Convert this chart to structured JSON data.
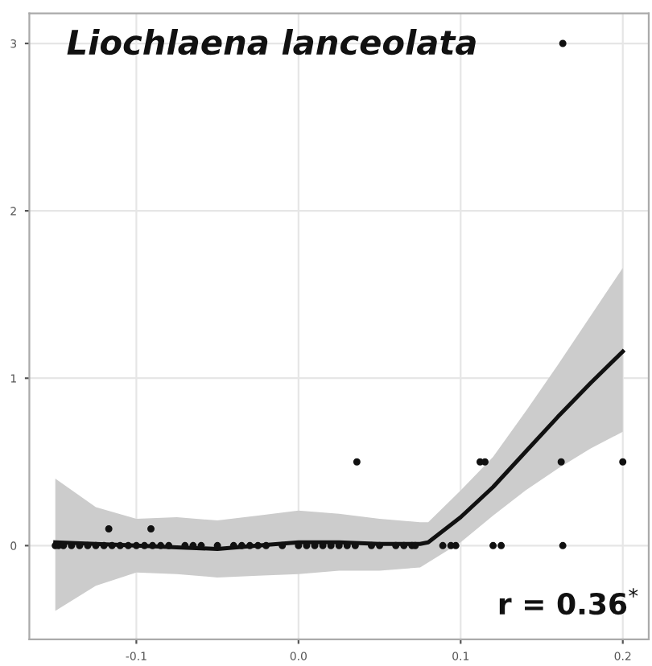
{
  "chart_data": {
    "type": "scatter",
    "title": "Liochlaena lanceolata",
    "annotations": [
      {
        "text": "r = 0.36$^{*}$"
      }
    ],
    "series": [
      {
        "color": "#111111",
        "marker": "circle",
        "x": [
          -0.15,
          -0.148,
          -0.145,
          -0.14,
          -0.135,
          -0.13,
          -0.125,
          -0.12,
          -0.115,
          -0.11,
          -0.105,
          -0.1,
          -0.095,
          -0.09,
          -0.085,
          -0.08,
          -0.07,
          -0.065,
          -0.06,
          -0.05,
          -0.04,
          -0.035,
          -0.03,
          -0.025,
          -0.02,
          -0.01,
          0.0,
          0.005,
          0.01,
          0.015,
          0.02,
          0.025,
          0.03,
          0.035,
          0.045,
          0.05,
          0.06,
          0.065,
          0.07,
          0.072,
          0.089,
          0.094,
          0.097,
          0.12,
          0.125,
          0.163,
          -0.117,
          -0.091,
          0.036,
          0.112,
          0.115,
          0.162,
          0.2,
          0.163
        ],
        "values": [
          0,
          0,
          0,
          0,
          0,
          0,
          0,
          0,
          0,
          0,
          0,
          0,
          0,
          0,
          0,
          0,
          0,
          0,
          0,
          0,
          0,
          0,
          0,
          0,
          0,
          0,
          0,
          0,
          0,
          0,
          0,
          0,
          0,
          0,
          0,
          0,
          0,
          0,
          0,
          0,
          0,
          0,
          0,
          0,
          0,
          0,
          0.1,
          0.1,
          0.5,
          0.5,
          0.5,
          0.5,
          0.5,
          3
        ]
      },
      {
        "type": "line",
        "color": "#111111",
        "marker": "none",
        "x": [
          -0.15,
          -0.125,
          -0.1,
          -0.075,
          -0.05,
          -0.025,
          0.0,
          0.025,
          0.05,
          0.075,
          0.08,
          0.1,
          0.12,
          0.14,
          0.16,
          0.18,
          0.2
        ],
        "values": [
          0.02,
          0.01,
          0.0,
          -0.01,
          -0.02,
          0.0,
          0.02,
          0.02,
          0.01,
          0.01,
          0.02,
          0.17,
          0.35,
          0.56,
          0.77,
          0.97,
          1.16
        ],
        "lower": [
          -0.39,
          -0.24,
          -0.16,
          -0.17,
          -0.19,
          -0.18,
          -0.17,
          -0.15,
          -0.15,
          -0.13,
          -0.1,
          0.02,
          0.18,
          0.33,
          0.46,
          0.58,
          0.68
        ],
        "upper": [
          0.4,
          0.23,
          0.16,
          0.17,
          0.15,
          0.18,
          0.21,
          0.19,
          0.16,
          0.14,
          0.14,
          0.33,
          0.53,
          0.8,
          1.08,
          1.37,
          1.66
        ]
      }
    ],
    "xlim": [
      -0.166,
      0.216
    ],
    "ylim": [
      -0.56,
      3.18
    ],
    "xticks": [
      {
        "value": -0.1,
        "label": "-0.1"
      },
      {
        "value": 0.0,
        "label": "0.0"
      },
      {
        "value": 0.1,
        "label": "0.1"
      },
      {
        "value": 0.2,
        "label": "0.2"
      }
    ],
    "yticks": [
      0,
      1,
      2,
      3
    ],
    "grid": true
  }
}
